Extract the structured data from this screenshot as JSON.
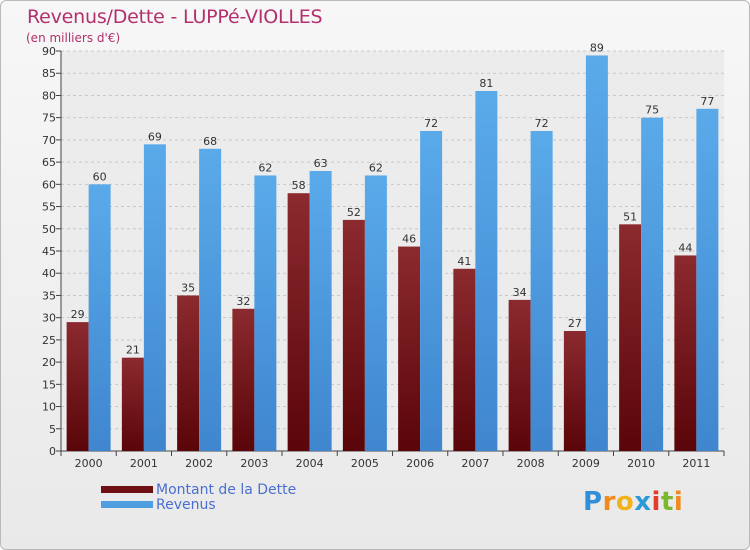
{
  "header": {
    "title": "Revenus/Dette - LUPPé-VIOLLES",
    "subtitle": "(en milliers d'€)"
  },
  "chart_data": {
    "type": "bar",
    "categories": [
      "2000",
      "2001",
      "2002",
      "2003",
      "2004",
      "2005",
      "2006",
      "2007",
      "2008",
      "2009",
      "2010",
      "2011"
    ],
    "series": [
      {
        "name": "Montant de la Dette",
        "values": [
          29,
          21,
          35,
          32,
          58,
          52,
          46,
          41,
          34,
          27,
          51,
          44
        ],
        "color": "#6e0f14"
      },
      {
        "name": "Revenus",
        "values": [
          60,
          69,
          68,
          62,
          63,
          62,
          72,
          81,
          72,
          89,
          75,
          77
        ],
        "color": "#4f9fe0"
      }
    ],
    "ylim": [
      0,
      90
    ],
    "yticks": [
      0,
      5,
      10,
      15,
      20,
      25,
      30,
      35,
      40,
      45,
      50,
      55,
      60,
      65,
      70,
      75,
      80,
      85,
      90
    ],
    "grid": true,
    "legend": "bottom-left"
  },
  "legend": {
    "items": [
      {
        "label": "Montant de la Dette",
        "color": "#6e0f14"
      },
      {
        "label": "Revenus",
        "color": "#4f9fe0"
      }
    ]
  },
  "brand": {
    "letters": [
      "P",
      "r",
      "o",
      "x",
      "i",
      "t",
      "i"
    ],
    "colors": [
      "#2f8fd8",
      "#f08a1c",
      "#f0b31c",
      "#2a9bd8",
      "#e23c2c",
      "#7cb82f",
      "#f08a1c"
    ]
  }
}
